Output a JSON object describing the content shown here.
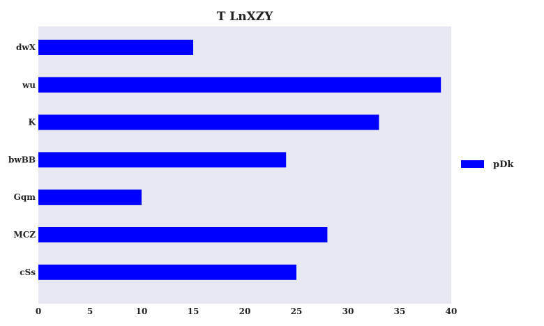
{
  "chart_data": {
    "type": "bar",
    "orientation": "horizontal",
    "title": "T LnXZY",
    "xlabel": "",
    "ylabel": "",
    "categories": [
      "dwX",
      "wu",
      "K",
      "bwBB",
      "Gqm",
      "MCZ",
      "cSs"
    ],
    "series": [
      {
        "name": "pDk",
        "color": "#0000ff",
        "values": [
          15,
          39,
          33,
          24,
          10,
          28,
          25
        ]
      }
    ],
    "xlim": [
      0,
      40
    ],
    "xticks": [
      0,
      5,
      10,
      15,
      20,
      25,
      30,
      35,
      40
    ],
    "grid": false,
    "legend_position": "right",
    "plot_background": "#e8e8f2"
  }
}
